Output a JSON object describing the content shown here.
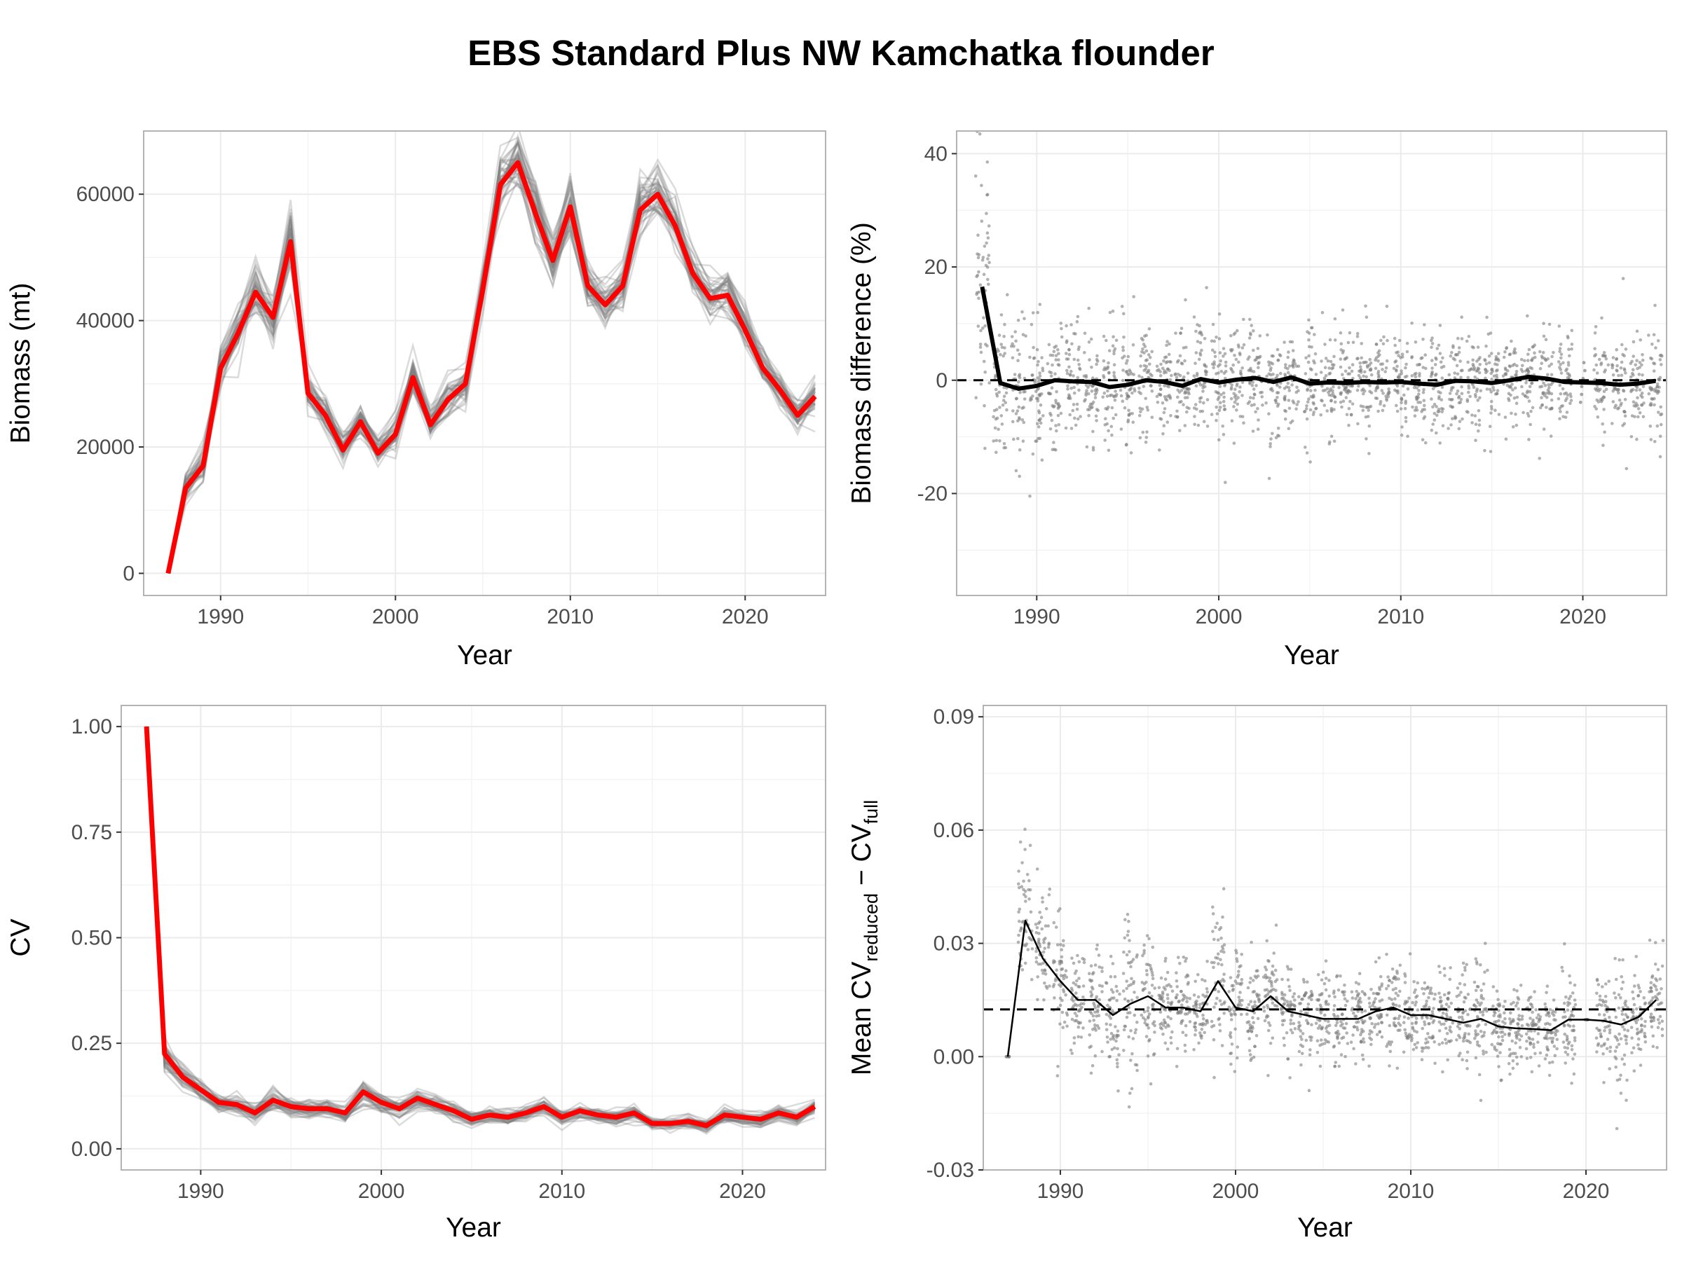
{
  "title": "EBS Standard Plus NW Kamchatka flounder",
  "colors": {
    "highlight": "#ff0000",
    "replicate": "#7f7f7f",
    "mean": "#000000",
    "grid": "#ebebeb",
    "panel_border": "#b3b3b3",
    "points": "#7f7f7f"
  },
  "chart_data": [
    {
      "type": "line",
      "panel": "top-left",
      "xlabel": "Year",
      "ylabel": "Biomass (mt)",
      "xlim": [
        1985.6,
        2024.6
      ],
      "ylim": [
        -3500,
        70000
      ],
      "x_ticks": [
        1990,
        2000,
        2010,
        2020
      ],
      "x_tick_labels": [
        "1990",
        "2000",
        "2010",
        "2020"
      ],
      "y_ticks": [
        0,
        20000,
        40000,
        60000
      ],
      "y_tick_labels": [
        "0",
        "20000",
        "40000",
        "60000"
      ],
      "grid": true,
      "x": [
        1987,
        1988,
        1989,
        1990,
        1991,
        1992,
        1993,
        1994,
        1995,
        1996,
        1997,
        1998,
        1999,
        2000,
        2001,
        2002,
        2003,
        2004,
        2005,
        2006,
        2007,
        2008,
        2009,
        2010,
        2011,
        2012,
        2013,
        2014,
        2015,
        2016,
        2017,
        2018,
        2019,
        2020,
        2021,
        2022,
        2023,
        2024
      ],
      "series": [
        {
          "role": "full survey (red)",
          "values": [
            0,
            13500,
            17000,
            32500,
            38000,
            44500,
            40500,
            52500,
            28500,
            25000,
            19500,
            24000,
            19000,
            22000,
            31000,
            23500,
            27500,
            30000,
            45000,
            61500,
            65000,
            57000,
            49500,
            58000,
            45500,
            42500,
            45500,
            57500,
            60000,
            55000,
            47500,
            43500,
            44000,
            38500,
            32500,
            29000,
            25000,
            28000
          ]
        }
      ],
      "replicate_spread": [
        0,
        1800,
        2200,
        2800,
        3000,
        3200,
        3200,
        3600,
        2600,
        2300,
        2000,
        2100,
        2000,
        2000,
        2600,
        2100,
        2300,
        2400,
        3000,
        3600,
        3800,
        3600,
        3200,
        3600,
        3000,
        2800,
        2900,
        3400,
        3500,
        3300,
        3000,
        2700,
        2700,
        2500,
        2300,
        2100,
        2000,
        2100
      ]
    },
    {
      "type": "scatter",
      "panel": "top-right",
      "xlabel": "Year",
      "ylabel": "Biomass difference (%)",
      "xlim": [
        1985.6,
        2024.6
      ],
      "ylim": [
        -38,
        44
      ],
      "x_ticks": [
        1990,
        2000,
        2010,
        2020
      ],
      "x_tick_labels": [
        "1990",
        "2000",
        "2010",
        "2020"
      ],
      "y_ticks": [
        -20,
        0,
        20,
        40
      ],
      "y_tick_labels": [
        "-20",
        "0",
        "20",
        "40"
      ],
      "grid": true,
      "reference_line": 0,
      "x": [
        1987,
        1988,
        1989,
        1990,
        1991,
        1992,
        1993,
        1994,
        1995,
        1996,
        1997,
        1998,
        1999,
        2000,
        2001,
        2002,
        2003,
        2004,
        2005,
        2006,
        2007,
        2008,
        2009,
        2010,
        2011,
        2012,
        2013,
        2014,
        2015,
        2016,
        2017,
        2018,
        2019,
        2020,
        2021,
        2022,
        2023,
        2024
      ],
      "mean": [
        16.5,
        -0.5,
        -1.5,
        -1.0,
        0.0,
        -0.2,
        -0.3,
        -1.2,
        -0.8,
        0.0,
        -0.3,
        -1.0,
        0.2,
        -0.4,
        0.1,
        0.4,
        -0.3,
        0.5,
        -0.6,
        -0.4,
        -0.5,
        -0.3,
        -0.4,
        -0.3,
        -0.6,
        -0.8,
        -0.1,
        -0.2,
        -0.5,
        0.0,
        0.6,
        0.3,
        -0.3,
        -0.4,
        -0.5,
        -0.8,
        -0.6,
        -0.1
      ],
      "spread": [
        12,
        7,
        7,
        6,
        6,
        5.5,
        5.5,
        5.5,
        5.5,
        5,
        5,
        5,
        6,
        5.5,
        5,
        5,
        5,
        4.5,
        4.5,
        4.5,
        4.5,
        4.5,
        4.5,
        4.5,
        4.5,
        4.5,
        4.5,
        4.5,
        4.5,
        4,
        4,
        4,
        4.5,
        0,
        4,
        4,
        4,
        5
      ]
    },
    {
      "type": "line",
      "panel": "bottom-left",
      "xlabel": "Year",
      "ylabel": "CV",
      "xlim": [
        1985.6,
        2024.6
      ],
      "ylim": [
        -0.05,
        1.05
      ],
      "x_ticks": [
        1990,
        2000,
        2010,
        2020
      ],
      "x_tick_labels": [
        "1990",
        "2000",
        "2010",
        "2020"
      ],
      "y_ticks": [
        0,
        0.25,
        0.5,
        0.75,
        1.0
      ],
      "y_tick_labels": [
        "0.00",
        "0.25",
        "0.50",
        "0.75",
        "1.00"
      ],
      "grid": true,
      "x": [
        1987,
        1988,
        1989,
        1990,
        1991,
        1992,
        1993,
        1994,
        1995,
        1996,
        1997,
        1998,
        1999,
        2000,
        2001,
        2002,
        2003,
        2004,
        2005,
        2006,
        2007,
        2008,
        2009,
        2010,
        2011,
        2012,
        2013,
        2014,
        2015,
        2016,
        2017,
        2018,
        2019,
        2020,
        2021,
        2022,
        2023,
        2024
      ],
      "series": [
        {
          "role": "full survey (red)",
          "values": [
            1.0,
            0.225,
            0.17,
            0.14,
            0.11,
            0.105,
            0.085,
            0.115,
            0.1,
            0.095,
            0.095,
            0.085,
            0.135,
            0.11,
            0.095,
            0.12,
            0.105,
            0.09,
            0.07,
            0.08,
            0.075,
            0.085,
            0.1,
            0.075,
            0.09,
            0.08,
            0.075,
            0.085,
            0.06,
            0.06,
            0.065,
            0.055,
            0.08,
            0.075,
            0.07,
            0.085,
            0.075,
            0.1
          ]
        }
      ],
      "replicate_spread": [
        0,
        0.03,
        0.02,
        0.015,
        0.015,
        0.015,
        0.015,
        0.02,
        0.015,
        0.015,
        0.015,
        0.015,
        0.02,
        0.015,
        0.015,
        0.015,
        0.015,
        0.015,
        0.012,
        0.012,
        0.012,
        0.012,
        0.015,
        0.012,
        0.012,
        0.012,
        0.012,
        0.012,
        0.01,
        0.01,
        0.01,
        0.01,
        0.012,
        0.012,
        0.012,
        0.012,
        0.012,
        0.015
      ]
    },
    {
      "type": "scatter",
      "panel": "bottom-right",
      "xlabel": "Year",
      "ylabel_parts": {
        "main": "Mean CV",
        "sub1": "reduced",
        "minus": " − CV",
        "sub2": "full"
      },
      "xlim": [
        1985.6,
        2024.6
      ],
      "ylim": [
        -0.03,
        0.093
      ],
      "x_ticks": [
        1990,
        2000,
        2010,
        2020
      ],
      "x_tick_labels": [
        "1990",
        "2000",
        "2010",
        "2020"
      ],
      "y_ticks": [
        -0.03,
        0,
        0.03,
        0.06,
        0.09
      ],
      "y_tick_labels": [
        "-0.03",
        "0.00",
        "0.03",
        "0.06",
        "0.09"
      ],
      "grid": true,
      "reference_line": 0.0125,
      "x": [
        1987,
        1988,
        1989,
        1990,
        1991,
        1992,
        1993,
        1994,
        1995,
        1996,
        1997,
        1998,
        1999,
        2000,
        2001,
        2002,
        2003,
        2004,
        2005,
        2006,
        2007,
        2008,
        2009,
        2010,
        2011,
        2012,
        2013,
        2014,
        2015,
        2016,
        2017,
        2018,
        2019,
        2020,
        2021,
        2022,
        2023,
        2024
      ],
      "mean": [
        0.0,
        0.036,
        0.026,
        0.02,
        0.015,
        0.015,
        0.011,
        0.014,
        0.016,
        0.013,
        0.013,
        0.012,
        0.02,
        0.013,
        0.012,
        0.016,
        0.012,
        0.011,
        0.01,
        0.01,
        0.01,
        0.012,
        0.013,
        0.011,
        0.011,
        0.01,
        0.009,
        0.01,
        0.008,
        0.0075,
        0.0073,
        0.007,
        0.0098,
        0.0098,
        0.0095,
        0.0085,
        0.0105,
        0.015
      ],
      "spread": [
        0,
        0.014,
        0.01,
        0.008,
        0.007,
        0.007,
        0.007,
        0.012,
        0.008,
        0.006,
        0.006,
        0.006,
        0.01,
        0.007,
        0.006,
        0.007,
        0.006,
        0.006,
        0.006,
        0.006,
        0.006,
        0.006,
        0.006,
        0.006,
        0.006,
        0.006,
        0.006,
        0.008,
        0.005,
        0.005,
        0.005,
        0.005,
        0.008,
        0,
        0.006,
        0.01,
        0.006,
        0.007
      ]
    }
  ]
}
